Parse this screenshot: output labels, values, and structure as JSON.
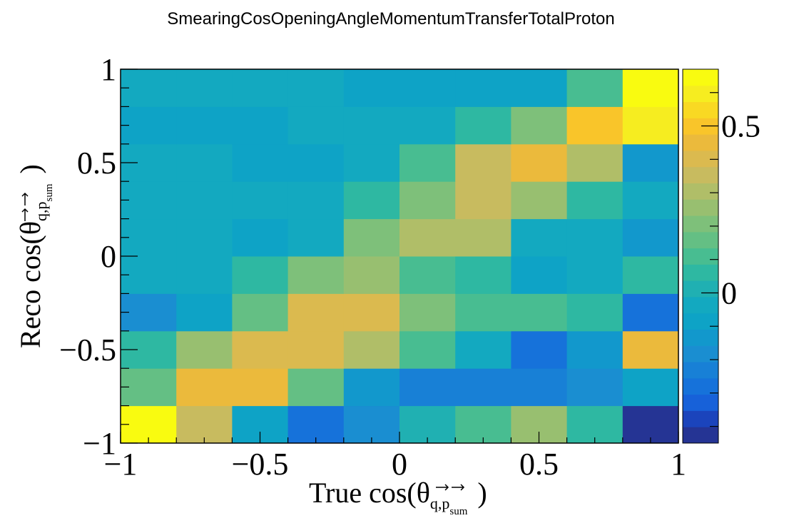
{
  "chart_data": {
    "type": "heatmap",
    "title": "SmearingCosOpeningAngleMomentumTransferTotalProton",
    "xlabel": {
      "prefix": "True cos(θ",
      "sub_q": "q",
      "sub_comma": ",",
      "sub_p": "p",
      "sub_sum": "sum",
      "suffix": ")"
    },
    "ylabel": {
      "prefix": "Reco cos(θ",
      "sub_q": "q",
      "sub_comma": ",",
      "sub_p": "p",
      "sub_sum": "sum",
      "suffix": ")"
    },
    "xlim": [
      -1,
      1
    ],
    "ylim": [
      -1,
      1
    ],
    "x_ticks": [
      {
        "value": -1,
        "label": "−1"
      },
      {
        "value": -0.5,
        "label": "−0.5"
      },
      {
        "value": 0,
        "label": "0"
      },
      {
        "value": 0.5,
        "label": "0.5"
      },
      {
        "value": 1,
        "label": "1"
      }
    ],
    "y_ticks": [
      {
        "value": -1,
        "label": "−1"
      },
      {
        "value": -0.5,
        "label": "−0.5"
      },
      {
        "value": 0,
        "label": "0"
      },
      {
        "value": 0.5,
        "label": "0.5"
      },
      {
        "value": 1,
        "label": "1"
      }
    ],
    "x_bin_edges": [
      -1,
      -0.8,
      -0.6,
      -0.4,
      -0.2,
      0,
      0.2,
      0.4,
      0.6,
      0.8,
      1
    ],
    "y_bin_edges": [
      -1,
      -0.8,
      -0.6,
      -0.4,
      -0.2,
      0,
      0.2,
      0.4,
      0.6,
      0.8,
      1
    ],
    "z_values_rows_bottom_to_top": [
      [
        0.67,
        0.35,
        -0.1,
        -0.3,
        -0.2,
        0.0,
        0.12,
        0.25,
        0.05,
        -0.5
      ],
      [
        0.15,
        0.45,
        0.45,
        0.15,
        -0.15,
        -0.25,
        -0.25,
        -0.25,
        -0.2,
        -0.1
      ],
      [
        0.05,
        0.28,
        0.4,
        0.4,
        0.32,
        0.1,
        -0.05,
        -0.3,
        -0.15,
        0.45
      ],
      [
        -0.2,
        -0.1,
        0.15,
        0.42,
        0.42,
        0.2,
        0.12,
        0.12,
        0.05,
        -0.3
      ],
      [
        -0.05,
        -0.05,
        0.05,
        0.2,
        0.28,
        0.12,
        0.05,
        -0.1,
        -0.05,
        0.05
      ],
      [
        -0.05,
        -0.05,
        -0.1,
        -0.05,
        0.2,
        0.3,
        0.3,
        -0.02,
        -0.05,
        -0.15
      ],
      [
        -0.05,
        -0.05,
        -0.05,
        -0.05,
        0.05,
        0.22,
        0.37,
        0.25,
        0.05,
        -0.02
      ],
      [
        -0.05,
        -0.05,
        -0.1,
        -0.1,
        -0.05,
        0.12,
        0.37,
        0.47,
        0.3,
        -0.15
      ],
      [
        -0.1,
        -0.1,
        -0.1,
        -0.05,
        -0.05,
        -0.05,
        0.05,
        0.2,
        0.5,
        0.62
      ],
      [
        -0.05,
        -0.05,
        -0.05,
        -0.05,
        -0.1,
        -0.1,
        -0.1,
        -0.1,
        0.12,
        0.67
      ]
    ],
    "zlim": [
      -0.45,
      0.67
    ],
    "z_ticks": [
      {
        "value": 0,
        "label": "0"
      },
      {
        "value": 0.5,
        "label": "0.5"
      }
    ],
    "palette": [
      "#253494",
      "#1b44bc",
      "#1761d9",
      "#1672da",
      "#1880d6",
      "#1a8ed1",
      "#1298cc",
      "#0ea3c6",
      "#13a9c0",
      "#20b0b2",
      "#2eb8a2",
      "#48bd91",
      "#64bf84",
      "#7ec07a",
      "#98bf70",
      "#b0be68",
      "#c8bb5f",
      "#dbba4f",
      "#ebba3c",
      "#f9c52a",
      "#f9d923",
      "#f6ed20",
      "#f9fb10"
    ]
  }
}
